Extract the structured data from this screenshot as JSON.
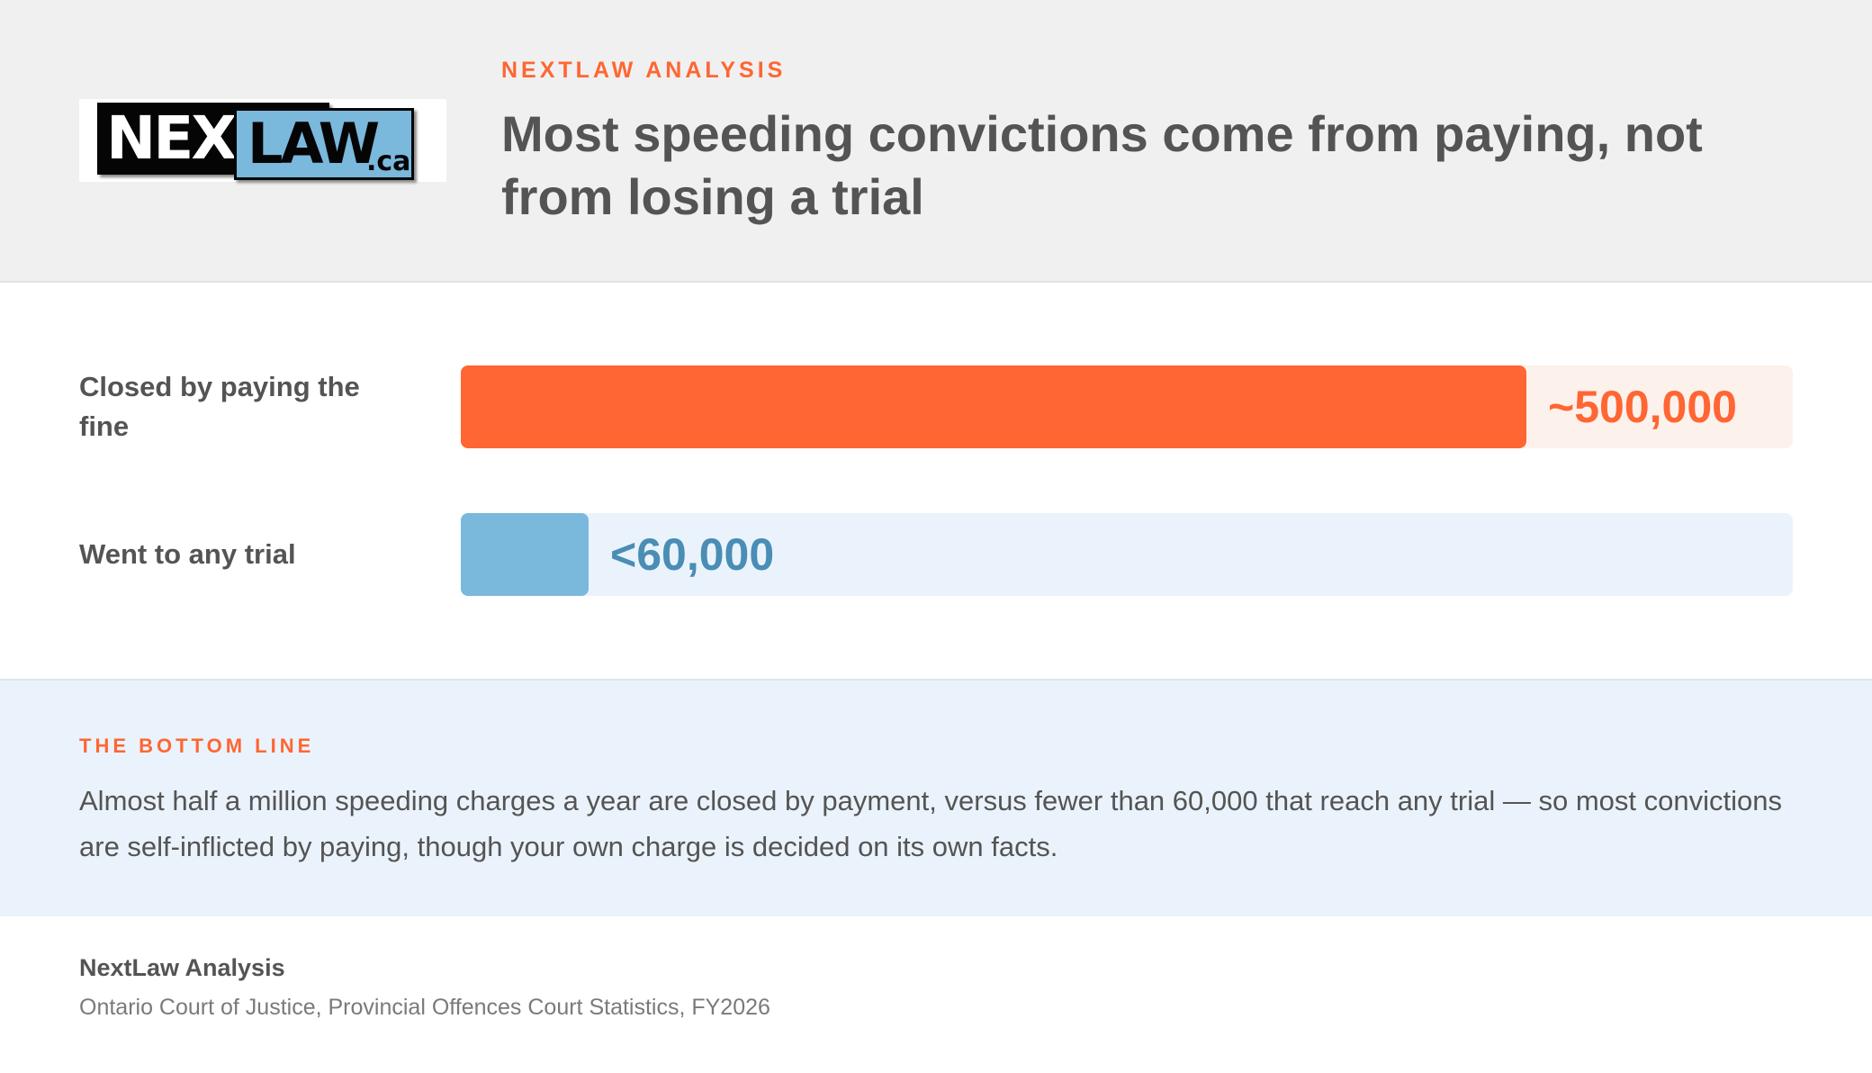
{
  "header": {
    "logo": {
      "next_text": "NEXT",
      "law_text": "LAW",
      "ca_text": ".ca"
    },
    "kicker": "NEXTLAW ANALYSIS",
    "title": "Most speeding convictions come from paying, not from losing a trial"
  },
  "chart_data": {
    "type": "bar",
    "orientation": "horizontal",
    "categories": [
      "Closed by paying the fine",
      "Went to any trial"
    ],
    "values": [
      500000,
      60000
    ],
    "value_labels": [
      "~500,000",
      "<60,000"
    ],
    "xlim": [
      0,
      625000
    ],
    "colors": [
      "#ff6633",
      "#7ab8dc"
    ],
    "track_colors": [
      "#fdf1ec",
      "#eaf3fb"
    ],
    "label_colors": [
      "#ff6633",
      "#4a8db5"
    ]
  },
  "bottom_line": {
    "kicker": "THE BOTTOM LINE",
    "text": "Almost half a million speeding charges a year are closed by payment, versus fewer than 60,000 that reach any trial — so most convictions are self-inflicted by paying, though your own charge is decided on its own facts."
  },
  "source": {
    "title": "NextLaw Analysis",
    "text": "Ontario Court of Justice, Provincial Offences Court Statistics, FY2026"
  }
}
